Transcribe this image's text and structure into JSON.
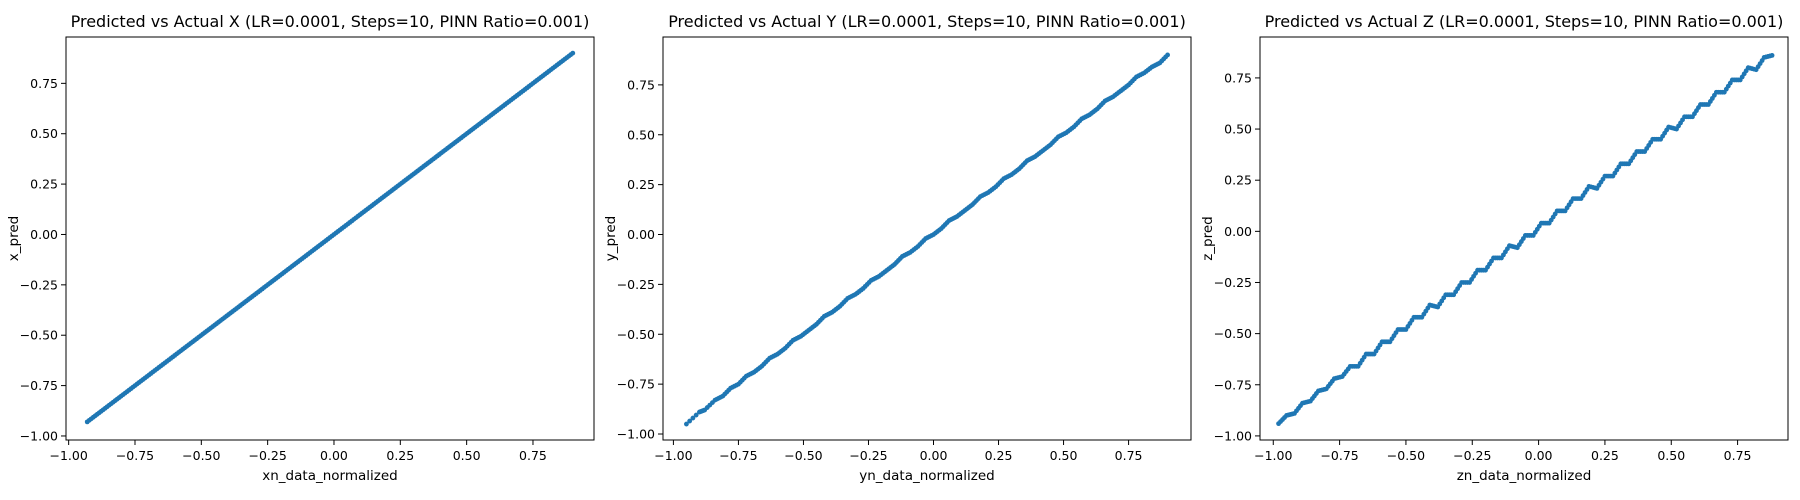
{
  "chart_data": [
    {
      "type": "scatter",
      "title": "Predicted vs Actual X (LR=0.0001, Steps=10, PINN Ratio=0.001)",
      "xlabel": "xn_data_normalized",
      "ylabel": "x_pred",
      "xlim": [
        -1.01,
        0.98
      ],
      "ylim": [
        -1.02,
        0.98
      ],
      "xticks": [
        -1.0,
        -0.75,
        -0.5,
        -0.25,
        0.0,
        0.25,
        0.5,
        0.75
      ],
      "xtick_labels": [
        "−1.00",
        "−0.75",
        "−0.50",
        "−0.25",
        "0.00",
        "0.25",
        "0.50",
        "0.75"
      ],
      "yticks": [
        -1.0,
        -0.75,
        -0.5,
        -0.25,
        0.0,
        0.25,
        0.5,
        0.75
      ],
      "ytick_labels": [
        "−1.00",
        "−0.75",
        "−0.50",
        "−0.25",
        "0.00",
        "0.25",
        "0.50",
        "0.75"
      ],
      "grid": false,
      "color": "#1f77b4",
      "series": [
        {
          "x": [
            -0.93,
            -0.9,
            -0.87,
            -0.84,
            -0.81,
            -0.78,
            -0.75,
            -0.72,
            -0.69,
            -0.66,
            -0.63,
            -0.6,
            -0.57,
            -0.54,
            -0.51,
            -0.48,
            -0.45,
            -0.42,
            -0.39,
            -0.36,
            -0.33,
            -0.3,
            -0.27,
            -0.24,
            -0.21,
            -0.18,
            -0.15,
            -0.12,
            -0.09,
            -0.06,
            -0.03,
            0.0,
            0.03,
            0.06,
            0.09,
            0.12,
            0.15,
            0.18,
            0.21,
            0.24,
            0.27,
            0.3,
            0.33,
            0.36,
            0.39,
            0.42,
            0.45,
            0.48,
            0.51,
            0.54,
            0.57,
            0.6,
            0.63,
            0.66,
            0.69,
            0.72,
            0.75,
            0.78,
            0.81,
            0.84,
            0.87,
            0.9
          ],
          "y": [
            -0.93,
            -0.9,
            -0.87,
            -0.84,
            -0.81,
            -0.78,
            -0.75,
            -0.72,
            -0.69,
            -0.66,
            -0.63,
            -0.6,
            -0.57,
            -0.54,
            -0.51,
            -0.48,
            -0.45,
            -0.42,
            -0.39,
            -0.36,
            -0.33,
            -0.3,
            -0.27,
            -0.24,
            -0.21,
            -0.18,
            -0.15,
            -0.12,
            -0.09,
            -0.06,
            -0.03,
            0.0,
            0.03,
            0.06,
            0.09,
            0.12,
            0.15,
            0.18,
            0.21,
            0.24,
            0.27,
            0.3,
            0.33,
            0.36,
            0.39,
            0.42,
            0.45,
            0.48,
            0.51,
            0.54,
            0.57,
            0.6,
            0.63,
            0.66,
            0.69,
            0.72,
            0.75,
            0.78,
            0.81,
            0.84,
            0.87,
            0.9
          ]
        }
      ]
    },
    {
      "type": "scatter",
      "title": "Predicted vs Actual Y (LR=0.0001, Steps=10, PINN Ratio=0.001)",
      "xlabel": "yn_data_normalized",
      "ylabel": "y_pred",
      "xlim": [
        -1.04,
        0.99
      ],
      "ylim": [
        -1.03,
        0.99
      ],
      "xticks": [
        -1.0,
        -0.75,
        -0.5,
        -0.25,
        0.0,
        0.25,
        0.5,
        0.75
      ],
      "xtick_labels": [
        "−1.00",
        "−0.75",
        "−0.50",
        "−0.25",
        "0.00",
        "0.25",
        "0.50",
        "0.75"
      ],
      "yticks": [
        -1.0,
        -0.75,
        -0.5,
        -0.25,
        0.0,
        0.25,
        0.5,
        0.75
      ],
      "ytick_labels": [
        "−1.00",
        "−0.75",
        "−0.50",
        "−0.25",
        "0.00",
        "0.25",
        "0.50",
        "0.75"
      ],
      "grid": false,
      "color": "#1f77b4",
      "series": [
        {
          "x": [
            -0.95,
            -0.9,
            -0.88,
            -0.84,
            -0.81,
            -0.78,
            -0.75,
            -0.72,
            -0.69,
            -0.66,
            -0.63,
            -0.6,
            -0.57,
            -0.54,
            -0.51,
            -0.48,
            -0.45,
            -0.42,
            -0.39,
            -0.36,
            -0.33,
            -0.3,
            -0.27,
            -0.24,
            -0.21,
            -0.18,
            -0.15,
            -0.12,
            -0.09,
            -0.06,
            -0.03,
            0.0,
            0.03,
            0.06,
            0.09,
            0.12,
            0.15,
            0.18,
            0.21,
            0.24,
            0.27,
            0.3,
            0.33,
            0.36,
            0.39,
            0.42,
            0.45,
            0.48,
            0.51,
            0.54,
            0.57,
            0.6,
            0.63,
            0.66,
            0.69,
            0.72,
            0.75,
            0.78,
            0.81,
            0.84,
            0.87,
            0.9
          ],
          "y": [
            -0.95,
            -0.89,
            -0.88,
            -0.83,
            -0.81,
            -0.77,
            -0.75,
            -0.71,
            -0.69,
            -0.66,
            -0.62,
            -0.6,
            -0.57,
            -0.53,
            -0.51,
            -0.48,
            -0.45,
            -0.41,
            -0.39,
            -0.36,
            -0.32,
            -0.3,
            -0.27,
            -0.23,
            -0.21,
            -0.18,
            -0.15,
            -0.11,
            -0.09,
            -0.06,
            -0.02,
            0.0,
            0.03,
            0.07,
            0.09,
            0.12,
            0.15,
            0.19,
            0.21,
            0.24,
            0.28,
            0.3,
            0.33,
            0.37,
            0.39,
            0.42,
            0.45,
            0.49,
            0.51,
            0.54,
            0.58,
            0.6,
            0.63,
            0.67,
            0.69,
            0.72,
            0.75,
            0.79,
            0.81,
            0.84,
            0.86,
            0.9
          ]
        }
      ]
    },
    {
      "type": "scatter",
      "title": "Predicted vs Actual Z (LR=0.0001, Steps=10, PINN Ratio=0.001)",
      "xlabel": "zn_data_normalized",
      "ylabel": "z_pred",
      "xlim": [
        -1.05,
        0.94
      ],
      "ylim": [
        -1.02,
        0.95
      ],
      "xticks": [
        -1.0,
        -0.75,
        -0.5,
        -0.25,
        0.0,
        0.25,
        0.5,
        0.75
      ],
      "xtick_labels": [
        "−1.00",
        "−0.75",
        "−0.50",
        "−0.25",
        "0.00",
        "0.25",
        "0.50",
        "0.75"
      ],
      "yticks": [
        -1.0,
        -0.75,
        -0.5,
        -0.25,
        0.0,
        0.25,
        0.5,
        0.75
      ],
      "ytick_labels": [
        "−1.00",
        "−0.75",
        "−0.50",
        "−0.25",
        "0.00",
        "0.25",
        "0.50",
        "0.75"
      ],
      "grid": false,
      "color": "#1f77b4",
      "series": [
        {
          "x": [
            -0.98,
            -0.95,
            -0.92,
            -0.89,
            -0.86,
            -0.83,
            -0.8,
            -0.77,
            -0.74,
            -0.71,
            -0.68,
            -0.65,
            -0.62,
            -0.59,
            -0.56,
            -0.53,
            -0.5,
            -0.47,
            -0.44,
            -0.41,
            -0.38,
            -0.35,
            -0.32,
            -0.29,
            -0.26,
            -0.23,
            -0.2,
            -0.17,
            -0.14,
            -0.11,
            -0.08,
            -0.05,
            -0.02,
            0.01,
            0.04,
            0.07,
            0.1,
            0.13,
            0.16,
            0.19,
            0.22,
            0.25,
            0.28,
            0.31,
            0.34,
            0.37,
            0.4,
            0.43,
            0.46,
            0.49,
            0.52,
            0.55,
            0.58,
            0.61,
            0.64,
            0.67,
            0.7,
            0.73,
            0.76,
            0.79,
            0.82,
            0.85,
            0.88
          ],
          "y": [
            -0.94,
            -0.9,
            -0.89,
            -0.84,
            -0.83,
            -0.78,
            -0.77,
            -0.72,
            -0.71,
            -0.66,
            -0.66,
            -0.6,
            -0.6,
            -0.54,
            -0.54,
            -0.48,
            -0.48,
            -0.42,
            -0.42,
            -0.36,
            -0.37,
            -0.31,
            -0.31,
            -0.25,
            -0.25,
            -0.19,
            -0.19,
            -0.13,
            -0.13,
            -0.07,
            -0.08,
            -0.02,
            -0.02,
            0.04,
            0.04,
            0.1,
            0.1,
            0.16,
            0.16,
            0.22,
            0.21,
            0.27,
            0.27,
            0.33,
            0.33,
            0.39,
            0.39,
            0.45,
            0.45,
            0.51,
            0.5,
            0.56,
            0.56,
            0.62,
            0.62,
            0.68,
            0.68,
            0.74,
            0.74,
            0.8,
            0.79,
            0.85,
            0.86
          ]
        }
      ]
    }
  ]
}
